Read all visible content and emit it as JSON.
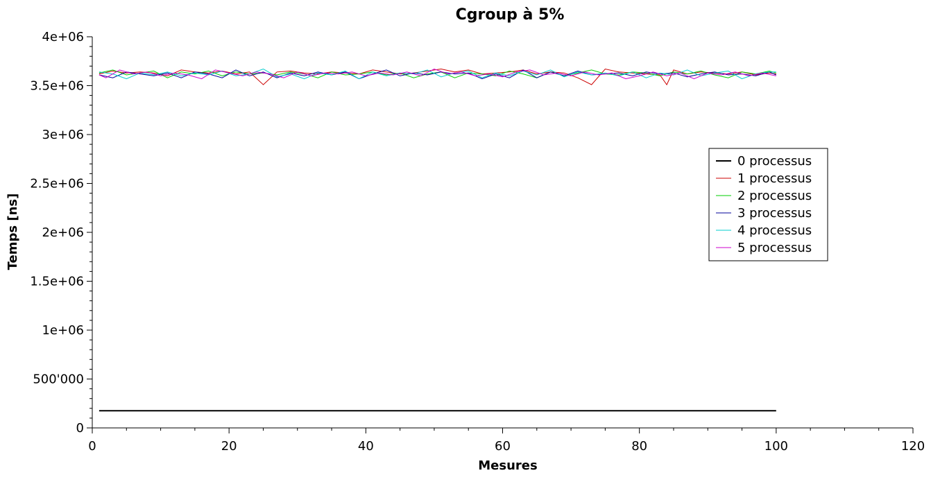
{
  "chart_data": {
    "type": "line",
    "title": "Cgroup à 5%",
    "xlabel": "Mesures",
    "ylabel": "Temps [ns]",
    "xlim": [
      0,
      120
    ],
    "ylim": [
      0,
      4000000
    ],
    "xticks": [
      0,
      20,
      40,
      60,
      80,
      100,
      120
    ],
    "xtick_labels": [
      "0",
      "20",
      "40",
      "60",
      "80",
      "100",
      "120"
    ],
    "yticks": [
      0,
      500000,
      1000000,
      1500000,
      2000000,
      2500000,
      3000000,
      3500000,
      4000000
    ],
    "ytick_labels": [
      "0",
      "500'000",
      "1e+06",
      "1.5e+06",
      "2e+06",
      "2.5e+06",
      "3e+06",
      "3.5e+06",
      "4e+06"
    ],
    "grid": false,
    "legend_position": "right",
    "series": [
      {
        "name": "0 processus",
        "color": "#000000",
        "x": [
          1,
          100
        ],
        "y": [
          175000,
          175000
        ]
      },
      {
        "name": "1 processus",
        "color": "#cc0000",
        "x": [
          1,
          3,
          5,
          7,
          9,
          11,
          13,
          15,
          17,
          19,
          21,
          23,
          25,
          27,
          29,
          31,
          33,
          35,
          37,
          39,
          41,
          43,
          45,
          47,
          49,
          51,
          53,
          55,
          57,
          59,
          61,
          63,
          65,
          67,
          69,
          71,
          73,
          75,
          77,
          79,
          81,
          83,
          84,
          85,
          87,
          89,
          91,
          93,
          95,
          97,
          99,
          100
        ],
        "y": [
          3620000,
          3650000,
          3630000,
          3640000,
          3630000,
          3600000,
          3660000,
          3640000,
          3630000,
          3650000,
          3620000,
          3640000,
          3510000,
          3640000,
          3650000,
          3630000,
          3620000,
          3640000,
          3630000,
          3620000,
          3660000,
          3640000,
          3620000,
          3630000,
          3650000,
          3670000,
          3640000,
          3660000,
          3620000,
          3630000,
          3640000,
          3660000,
          3620000,
          3640000,
          3630000,
          3580000,
          3510000,
          3670000,
          3640000,
          3630000,
          3620000,
          3610000,
          3510000,
          3660000,
          3620000,
          3640000,
          3630000,
          3620000,
          3640000,
          3610000,
          3630000,
          3620000
        ]
      },
      {
        "name": "2 processus",
        "color": "#00cc00",
        "x": [
          1,
          3,
          5,
          7,
          9,
          11,
          13,
          15,
          17,
          19,
          21,
          23,
          25,
          27,
          29,
          31,
          33,
          35,
          37,
          39,
          41,
          43,
          45,
          47,
          49,
          51,
          53,
          55,
          57,
          59,
          61,
          63,
          65,
          67,
          69,
          71,
          73,
          75,
          77,
          79,
          81,
          83,
          85,
          87,
          89,
          91,
          93,
          95,
          97,
          99,
          100
        ],
        "y": [
          3630000,
          3660000,
          3610000,
          3630000,
          3650000,
          3580000,
          3640000,
          3620000,
          3650000,
          3600000,
          3640000,
          3620000,
          3630000,
          3610000,
          3640000,
          3620000,
          3580000,
          3640000,
          3610000,
          3620000,
          3640000,
          3610000,
          3630000,
          3580000,
          3620000,
          3640000,
          3580000,
          3630000,
          3620000,
          3600000,
          3650000,
          3620000,
          3580000,
          3640000,
          3600000,
          3630000,
          3660000,
          3620000,
          3610000,
          3640000,
          3630000,
          3600000,
          3640000,
          3620000,
          3650000,
          3610000,
          3580000,
          3640000,
          3620000,
          3650000,
          3630000
        ]
      },
      {
        "name": "3 processus",
        "color": "#000099",
        "x": [
          1,
          3,
          5,
          7,
          9,
          11,
          13,
          15,
          17,
          19,
          21,
          23,
          25,
          27,
          29,
          31,
          33,
          35,
          37,
          39,
          41,
          43,
          45,
          47,
          49,
          51,
          53,
          55,
          57,
          59,
          61,
          63,
          65,
          67,
          69,
          71,
          73,
          75,
          77,
          79,
          81,
          83,
          85,
          87,
          89,
          91,
          93,
          95,
          97,
          99,
          100
        ],
        "y": [
          3610000,
          3580000,
          3640000,
          3620000,
          3600000,
          3630000,
          3580000,
          3640000,
          3620000,
          3580000,
          3660000,
          3600000,
          3640000,
          3580000,
          3630000,
          3600000,
          3640000,
          3610000,
          3640000,
          3570000,
          3620000,
          3660000,
          3600000,
          3630000,
          3610000,
          3640000,
          3620000,
          3630000,
          3570000,
          3620000,
          3580000,
          3660000,
          3580000,
          3640000,
          3600000,
          3650000,
          3610000,
          3620000,
          3630000,
          3600000,
          3640000,
          3620000,
          3630000,
          3590000,
          3620000,
          3640000,
          3610000,
          3620000,
          3600000,
          3640000,
          3610000
        ]
      },
      {
        "name": "4 processus",
        "color": "#00cccc",
        "x": [
          1,
          3,
          5,
          7,
          9,
          11,
          13,
          15,
          17,
          19,
          21,
          23,
          25,
          27,
          29,
          31,
          33,
          35,
          37,
          39,
          41,
          43,
          45,
          47,
          49,
          51,
          53,
          55,
          57,
          59,
          61,
          63,
          65,
          67,
          69,
          71,
          73,
          75,
          77,
          79,
          81,
          83,
          85,
          87,
          89,
          91,
          93,
          95,
          97,
          99,
          100
        ],
        "y": [
          3640000,
          3620000,
          3570000,
          3630000,
          3610000,
          3640000,
          3600000,
          3630000,
          3610000,
          3650000,
          3600000,
          3620000,
          3670000,
          3590000,
          3620000,
          3570000,
          3630000,
          3610000,
          3650000,
          3570000,
          3640000,
          3600000,
          3630000,
          3620000,
          3660000,
          3590000,
          3630000,
          3650000,
          3580000,
          3630000,
          3600000,
          3650000,
          3610000,
          3660000,
          3590000,
          3640000,
          3610000,
          3630000,
          3600000,
          3640000,
          3580000,
          3630000,
          3610000,
          3660000,
          3600000,
          3630000,
          3650000,
          3570000,
          3620000,
          3640000,
          3640000
        ]
      },
      {
        "name": "5 processus",
        "color": "#cc00cc",
        "x": [
          1,
          2,
          4,
          6,
          8,
          10,
          12,
          14,
          16,
          18,
          20,
          22,
          24,
          26,
          28,
          30,
          32,
          34,
          36,
          38,
          40,
          42,
          44,
          46,
          48,
          50,
          52,
          54,
          56,
          58,
          60,
          62,
          64,
          66,
          68,
          70,
          72,
          74,
          76,
          78,
          80,
          82,
          84,
          86,
          88,
          90,
          92,
          94,
          96,
          98,
          100
        ],
        "y": [
          3610000,
          3580000,
          3660000,
          3620000,
          3640000,
          3600000,
          3630000,
          3610000,
          3570000,
          3660000,
          3630000,
          3600000,
          3640000,
          3620000,
          3580000,
          3640000,
          3600000,
          3630000,
          3620000,
          3640000,
          3600000,
          3630000,
          3610000,
          3640000,
          3600000,
          3670000,
          3620000,
          3640000,
          3600000,
          3620000,
          3590000,
          3640000,
          3660000,
          3610000,
          3630000,
          3600000,
          3640000,
          3610000,
          3630000,
          3570000,
          3600000,
          3640000,
          3600000,
          3630000,
          3570000,
          3630000,
          3610000,
          3640000,
          3600000,
          3630000,
          3600000
        ]
      }
    ]
  }
}
